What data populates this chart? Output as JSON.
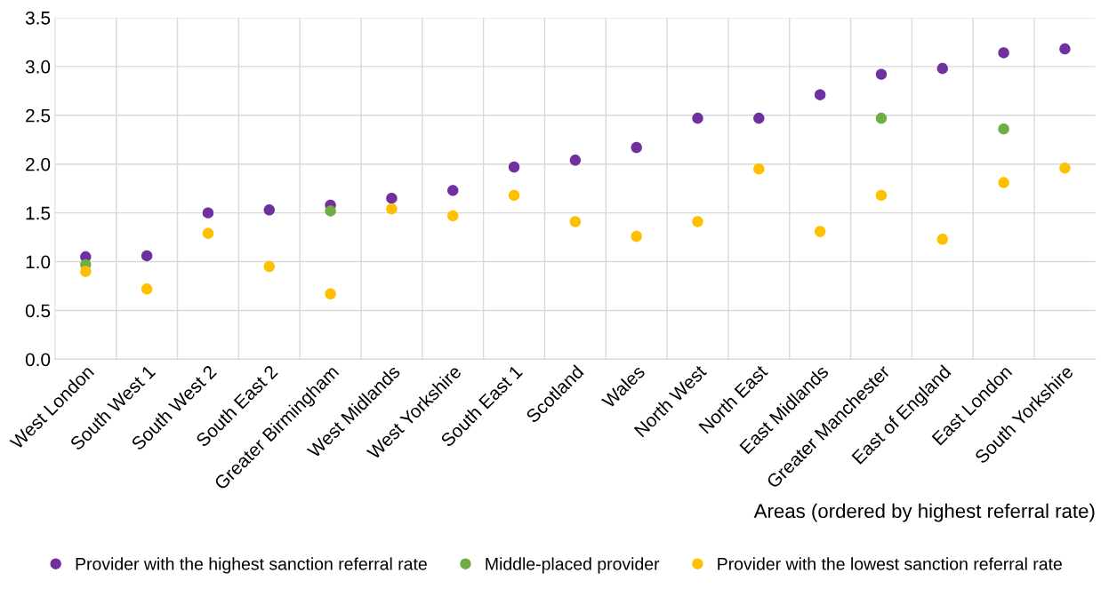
{
  "chart_data": {
    "type": "scatter",
    "xlabel": "Areas (ordered by highest referral rate)",
    "categories": [
      "West London",
      "South West 1",
      "South West 2",
      "South East 2",
      "Greater Birmingham",
      "West Midlands",
      "West Yorkshire",
      "South East 1",
      "Scotland",
      "Wales",
      "North West",
      "North East",
      "East Midlands",
      "Greater Manchester",
      "East of England",
      "East London",
      "South Yorkshire"
    ],
    "series": [
      {
        "name": "Provider with the highest sanction referral rate",
        "color": "#7030a0",
        "values": [
          1.05,
          1.06,
          1.5,
          1.53,
          1.58,
          1.65,
          1.73,
          1.97,
          2.04,
          2.17,
          2.47,
          2.47,
          2.71,
          2.92,
          2.98,
          3.14,
          3.18
        ]
      },
      {
        "name": "Middle-placed provider",
        "color": "#70ad47",
        "values": [
          0.97,
          null,
          null,
          null,
          1.52,
          null,
          null,
          null,
          null,
          null,
          null,
          null,
          null,
          2.47,
          null,
          2.36,
          null
        ]
      },
      {
        "name": "Provider with the lowest sanction referral rate",
        "color": "#ffc000",
        "values": [
          0.9,
          0.72,
          1.29,
          0.95,
          0.67,
          1.54,
          1.47,
          1.68,
          1.41,
          1.26,
          1.41,
          1.95,
          1.31,
          1.68,
          1.23,
          1.81,
          1.96
        ]
      }
    ],
    "ylim": [
      0,
      3.5
    ],
    "yticks": [
      {
        "value": 0,
        "label": "0.0"
      },
      {
        "value": 0.5,
        "label": "0.5"
      },
      {
        "value": 1,
        "label": "1.0"
      },
      {
        "value": 1.5,
        "label": "1.5"
      },
      {
        "value": 2,
        "label": "2.0"
      },
      {
        "value": 2.5,
        "label": "2.5"
      },
      {
        "value": 3,
        "label": "3.0"
      },
      {
        "value": 3.5,
        "label": "3.5"
      }
    ],
    "grid": true,
    "legend": "bottom",
    "marker": "circle"
  }
}
